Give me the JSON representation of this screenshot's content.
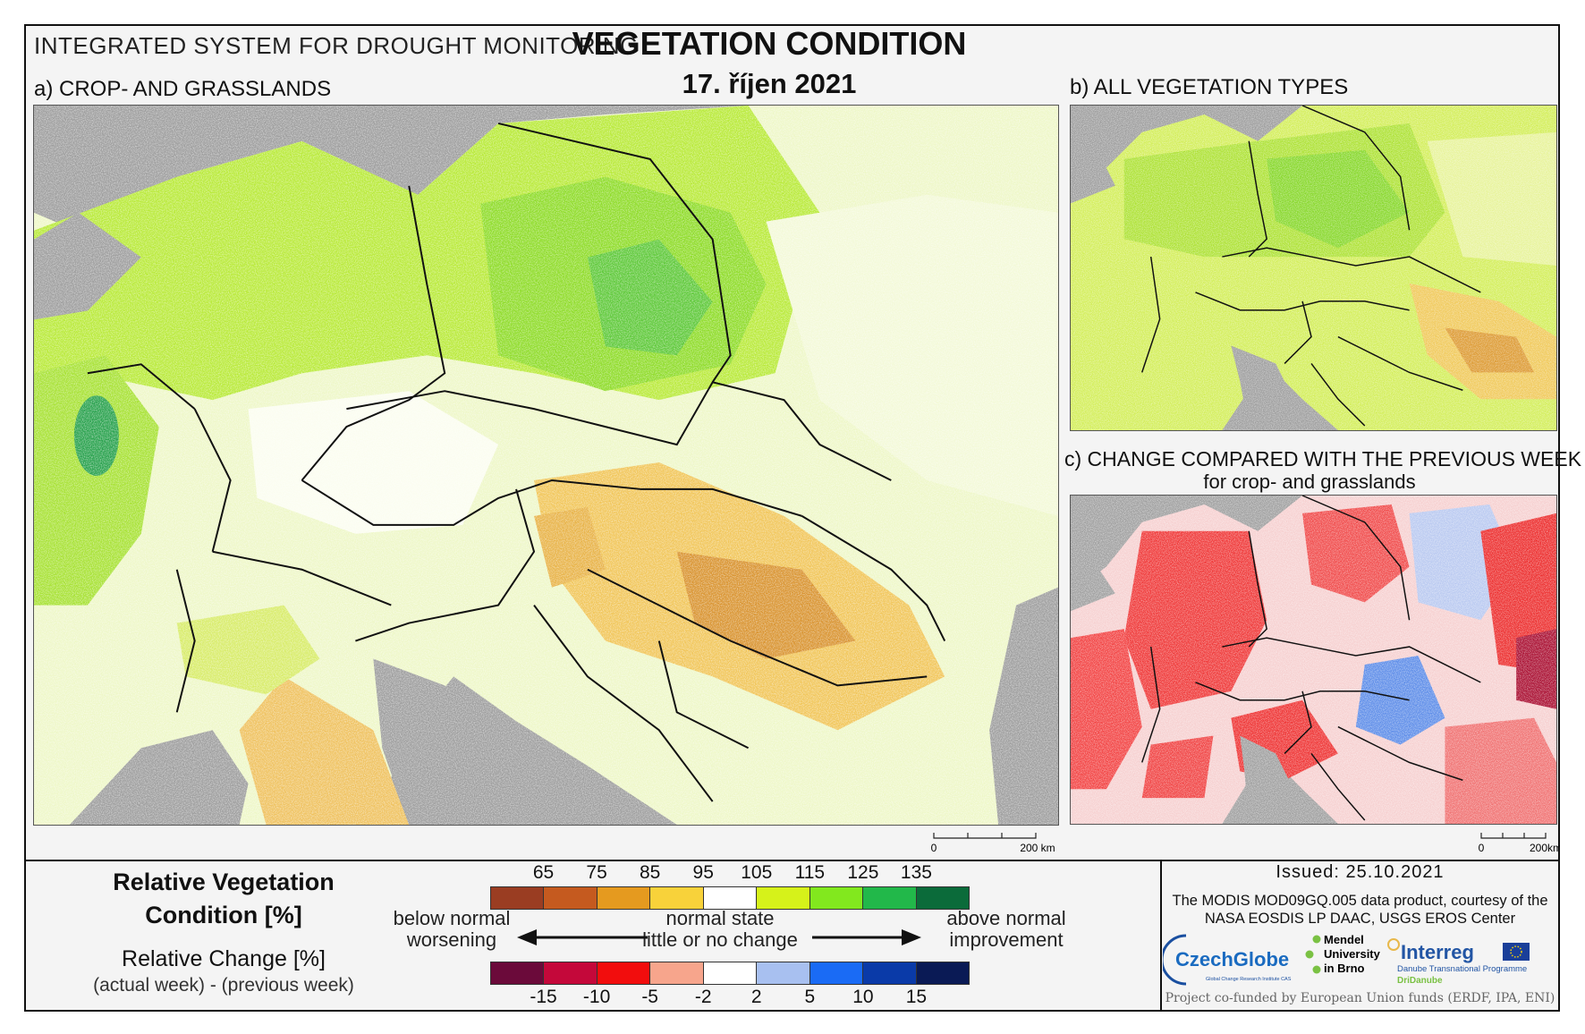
{
  "header": {
    "system_title": "INTEGRATED SYSTEM FOR DROUGHT MONITORING",
    "main_title": "VEGETATION CONDITION",
    "date": "17. říjen 2021"
  },
  "panels": {
    "a": "a) CROP- AND GRASSLANDS",
    "b": "b) ALL VEGETATION TYPES",
    "c": "c) CHANGE COMPARED WITH THE PREVIOUS WEEK",
    "c_sub": "for crop- and grasslands"
  },
  "scalebars": {
    "a": {
      "zero": "0",
      "end": "200 km"
    },
    "b": {
      "zero": "0",
      "end": "200km"
    }
  },
  "legend": {
    "title": "Relative Vegetation Condition [%]",
    "change_title": "Relative Change [%]",
    "change_sub": "(actual week) - (previous week)",
    "condition_ticks": [
      "65",
      "75",
      "85",
      "95",
      "105",
      "115",
      "125",
      "135"
    ],
    "condition_colors": [
      "#9a3d22",
      "#c55a1f",
      "#e59a1f",
      "#f8d23a",
      "#ffffff",
      "#d6f21a",
      "#82e81e",
      "#22b84a",
      "#0b6b3a"
    ],
    "change_ticks": [
      "-15",
      "-10",
      "-5",
      "-2",
      "2",
      "5",
      "10",
      "15"
    ],
    "change_colors": [
      "#6b0a3a",
      "#c4083a",
      "#f20d0d",
      "#f7a58c",
      "#ffffff",
      "#a8c0f0",
      "#1a6bf5",
      "#0a3aa8",
      "#0a1a55"
    ],
    "left_top": "below normal",
    "left_bottom": "worsening",
    "mid_top": "normal state",
    "mid_bottom": "little or no change",
    "right_top": "above normal",
    "right_bottom": "improvement"
  },
  "info": {
    "issued": "Issued: 25.10.2021",
    "courtesy": "The MODIS MOD09GQ.005 data product, courtesy of the NASA EOSDIS LP DAAC, USGS EROS Center",
    "funded": "Project co-funded by European Union funds (ERDF, IPA, ENI)"
  },
  "logos": {
    "czechglobe": "CzechGlobe",
    "czechglobe_sub": "Global Change Research Institute CAS",
    "mendel_1": "Mendel",
    "mendel_2": "University",
    "mendel_3": "in Brno",
    "interreg": "Interreg",
    "interreg_sub": "Danube Transnational Programme",
    "dridanube": "DriDanube"
  }
}
